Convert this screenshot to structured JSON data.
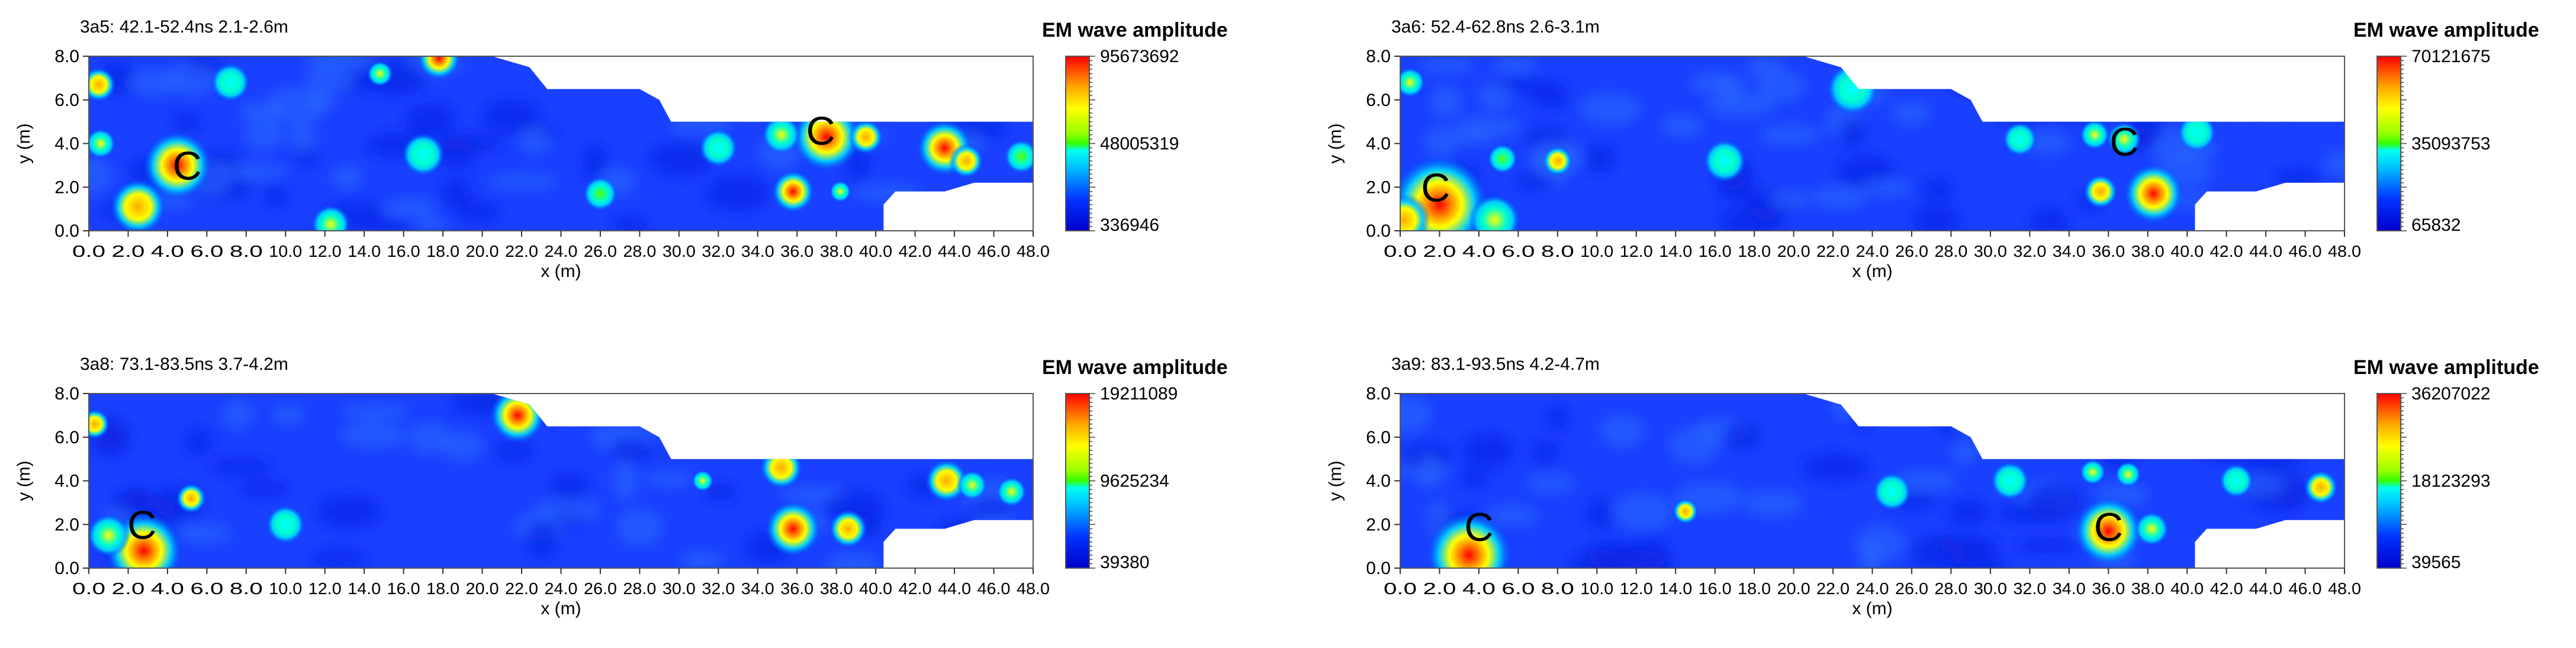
{
  "colorbar_title": "EM wave amplitude",
  "colors": {
    "low": "#0000ff",
    "mid": "#00e6ff",
    "midhigh": "#00ff00",
    "high": "#ffff00",
    "max": "#ff0000"
  },
  "chart_data": [
    {
      "type": "heatmap",
      "title": "3a5:  42.1-52.4ns   2.1-2.6m",
      "xlabel": "x (m)",
      "ylabel": "y (m)",
      "xlim": [
        0,
        48
      ],
      "ylim": [
        0,
        8
      ],
      "x_ticks": [
        "0.0",
        "2.0",
        "4.0",
        "6.0",
        "8.0",
        "10.0",
        "12.0",
        "14.0",
        "16.0",
        "18.0",
        "20.0",
        "22.0",
        "24.0",
        "26.0",
        "28.0",
        "30.0",
        "32.0",
        "34.0",
        "36.0",
        "38.0",
        "40.0",
        "42.0",
        "44.0",
        "46.0",
        "48.0"
      ],
      "y_ticks": [
        "0.0",
        "2.0",
        "4.0",
        "6.0",
        "8.0"
      ],
      "colorbar": {
        "max": "95673692",
        "mid": "48005319",
        "min": "336946"
      },
      "annotations": [
        {
          "text": "C",
          "x": 5.0,
          "y": 3.0
        },
        {
          "text": "C",
          "x": 37.2,
          "y": 4.6
        }
      ],
      "hotspots": [
        {
          "x": 4.5,
          "y": 3.0,
          "r": 1.6,
          "v": 0.95
        },
        {
          "x": 2.5,
          "y": 1.1,
          "r": 1.3,
          "v": 0.8
        },
        {
          "x": 0.5,
          "y": 6.7,
          "r": 0.8,
          "v": 0.75
        },
        {
          "x": 0.6,
          "y": 4.0,
          "r": 0.7,
          "v": 0.6
        },
        {
          "x": 17.8,
          "y": 7.9,
          "r": 1.0,
          "v": 0.9
        },
        {
          "x": 14.8,
          "y": 7.2,
          "r": 0.6,
          "v": 0.65
        },
        {
          "x": 12.3,
          "y": 0.3,
          "r": 0.9,
          "v": 0.6
        },
        {
          "x": 7.2,
          "y": 6.8,
          "r": 0.9,
          "v": 0.45
        },
        {
          "x": 17.0,
          "y": 3.5,
          "r": 1.0,
          "v": 0.45
        },
        {
          "x": 26.0,
          "y": 1.7,
          "r": 0.8,
          "v": 0.55
        },
        {
          "x": 35.8,
          "y": 1.8,
          "r": 1.0,
          "v": 0.95
        },
        {
          "x": 37.5,
          "y": 4.3,
          "r": 1.6,
          "v": 1.0
        },
        {
          "x": 35.2,
          "y": 4.4,
          "r": 0.9,
          "v": 0.7
        },
        {
          "x": 39.5,
          "y": 4.3,
          "r": 0.8,
          "v": 0.75
        },
        {
          "x": 43.5,
          "y": 3.8,
          "r": 1.3,
          "v": 1.0
        },
        {
          "x": 44.6,
          "y": 3.2,
          "r": 0.8,
          "v": 0.85
        },
        {
          "x": 38.2,
          "y": 1.8,
          "r": 0.5,
          "v": 0.6
        },
        {
          "x": 32.0,
          "y": 3.8,
          "r": 0.9,
          "v": 0.4
        },
        {
          "x": 47.4,
          "y": 3.4,
          "r": 0.8,
          "v": 0.5
        }
      ]
    },
    {
      "type": "heatmap",
      "title": "3a6:  52.4-62.8ns   2.6-3.1m",
      "xlabel": "x (m)",
      "ylabel": "y (m)",
      "xlim": [
        0,
        48
      ],
      "ylim": [
        0,
        8
      ],
      "x_ticks": [
        "0.0",
        "2.0",
        "4.0",
        "6.0",
        "8.0",
        "10.0",
        "12.0",
        "14.0",
        "16.0",
        "18.0",
        "20.0",
        "22.0",
        "24.0",
        "26.0",
        "28.0",
        "30.0",
        "32.0",
        "34.0",
        "36.0",
        "38.0",
        "40.0",
        "42.0",
        "44.0",
        "46.0",
        "48.0"
      ],
      "y_ticks": [
        "0.0",
        "2.0",
        "4.0",
        "6.0",
        "8.0"
      ],
      "colorbar": {
        "max": "70121675",
        "mid": "35093753",
        "min": "65832"
      },
      "annotations": [
        {
          "text": "C",
          "x": 1.8,
          "y": 2.0
        },
        {
          "text": "C",
          "x": 36.8,
          "y": 4.1
        }
      ],
      "hotspots": [
        {
          "x": 2.0,
          "y": 1.2,
          "r": 2.3,
          "v": 1.0
        },
        {
          "x": 0.2,
          "y": 0.5,
          "r": 1.2,
          "v": 0.85
        },
        {
          "x": 4.8,
          "y": 0.5,
          "r": 1.2,
          "v": 0.7
        },
        {
          "x": 0.5,
          "y": 6.8,
          "r": 0.7,
          "v": 0.6
        },
        {
          "x": 8.0,
          "y": 3.2,
          "r": 0.7,
          "v": 0.75
        },
        {
          "x": 5.2,
          "y": 3.3,
          "r": 0.7,
          "v": 0.5
        },
        {
          "x": 16.5,
          "y": 3.2,
          "r": 1.0,
          "v": 0.45
        },
        {
          "x": 35.3,
          "y": 4.4,
          "r": 0.7,
          "v": 0.7
        },
        {
          "x": 36.8,
          "y": 4.2,
          "r": 0.8,
          "v": 0.65
        },
        {
          "x": 35.6,
          "y": 1.8,
          "r": 0.8,
          "v": 0.85
        },
        {
          "x": 38.3,
          "y": 1.7,
          "r": 1.4,
          "v": 1.0
        },
        {
          "x": 31.5,
          "y": 4.2,
          "r": 0.8,
          "v": 0.4
        },
        {
          "x": 40.5,
          "y": 4.5,
          "r": 0.9,
          "v": 0.45
        },
        {
          "x": 23.0,
          "y": 6.5,
          "r": 1.2,
          "v": 0.35
        }
      ]
    },
    {
      "type": "heatmap",
      "title": "3a8:  73.1-83.5ns   3.7-4.2m",
      "xlabel": "x (m)",
      "ylabel": "y (m)",
      "xlim": [
        0,
        48
      ],
      "ylim": [
        0,
        8
      ],
      "x_ticks": [
        "0.0",
        "2.0",
        "4.0",
        "6.0",
        "8.0",
        "10.0",
        "12.0",
        "14.0",
        "16.0",
        "18.0",
        "20.0",
        "22.0",
        "24.0",
        "26.0",
        "28.0",
        "30.0",
        "32.0",
        "34.0",
        "36.0",
        "38.0",
        "40.0",
        "42.0",
        "44.0",
        "46.0",
        "48.0"
      ],
      "y_ticks": [
        "0.0",
        "2.0",
        "4.0",
        "6.0",
        "8.0"
      ],
      "colorbar": {
        "max": "19211089",
        "mid": "9625234",
        "min": "39380"
      },
      "annotations": [
        {
          "text": "C",
          "x": 2.7,
          "y": 2.0
        }
      ],
      "hotspots": [
        {
          "x": 2.8,
          "y": 0.8,
          "r": 1.8,
          "v": 1.0
        },
        {
          "x": 1.0,
          "y": 1.5,
          "r": 1.0,
          "v": 0.7
        },
        {
          "x": 5.2,
          "y": 3.2,
          "r": 0.7,
          "v": 0.85
        },
        {
          "x": 0.3,
          "y": 6.6,
          "r": 0.7,
          "v": 0.8
        },
        {
          "x": 21.8,
          "y": 7.0,
          "r": 1.3,
          "v": 1.0
        },
        {
          "x": 35.8,
          "y": 1.8,
          "r": 1.3,
          "v": 1.0
        },
        {
          "x": 38.6,
          "y": 1.8,
          "r": 0.9,
          "v": 0.85
        },
        {
          "x": 35.2,
          "y": 4.6,
          "r": 1.0,
          "v": 0.85
        },
        {
          "x": 31.2,
          "y": 4.0,
          "r": 0.5,
          "v": 0.6
        },
        {
          "x": 43.6,
          "y": 4.0,
          "r": 1.0,
          "v": 0.75
        },
        {
          "x": 46.9,
          "y": 3.5,
          "r": 0.7,
          "v": 0.7
        },
        {
          "x": 44.9,
          "y": 3.8,
          "r": 0.7,
          "v": 0.6
        },
        {
          "x": 10.0,
          "y": 2.0,
          "r": 0.9,
          "v": 0.35
        }
      ]
    },
    {
      "type": "heatmap",
      "title": "3a9:  83.1-93.5ns   4.2-4.7m",
      "xlabel": "x (m)",
      "ylabel": "y (m)",
      "xlim": [
        0,
        48
      ],
      "ylim": [
        0,
        8
      ],
      "x_ticks": [
        "0.0",
        "2.0",
        "4.0",
        "6.0",
        "8.0",
        "10.0",
        "12.0",
        "14.0",
        "16.0",
        "18.0",
        "20.0",
        "22.0",
        "24.0",
        "26.0",
        "28.0",
        "30.0",
        "32.0",
        "34.0",
        "36.0",
        "38.0",
        "40.0",
        "42.0",
        "44.0",
        "46.0",
        "48.0"
      ],
      "y_ticks": [
        "0.0",
        "2.0",
        "4.0",
        "6.0",
        "8.0"
      ],
      "colorbar": {
        "max": "36207022",
        "mid": "18123293",
        "min": "39565"
      },
      "annotations": [
        {
          "text": "C",
          "x": 4.0,
          "y": 1.9
        },
        {
          "text": "C",
          "x": 36.0,
          "y": 1.9
        }
      ],
      "hotspots": [
        {
          "x": 3.5,
          "y": 0.6,
          "r": 2.0,
          "v": 1.0
        },
        {
          "x": 14.5,
          "y": 2.6,
          "r": 0.6,
          "v": 0.75
        },
        {
          "x": 36.0,
          "y": 1.7,
          "r": 1.6,
          "v": 1.0
        },
        {
          "x": 38.2,
          "y": 1.8,
          "r": 0.8,
          "v": 0.7
        },
        {
          "x": 35.2,
          "y": 4.4,
          "r": 0.6,
          "v": 0.7
        },
        {
          "x": 37.0,
          "y": 4.3,
          "r": 0.6,
          "v": 0.6
        },
        {
          "x": 46.8,
          "y": 3.7,
          "r": 0.8,
          "v": 0.75
        },
        {
          "x": 31.0,
          "y": 4.0,
          "r": 0.9,
          "v": 0.4
        },
        {
          "x": 42.5,
          "y": 4.0,
          "r": 0.8,
          "v": 0.35
        },
        {
          "x": 25.0,
          "y": 3.5,
          "r": 0.9,
          "v": 0.3
        }
      ]
    }
  ]
}
